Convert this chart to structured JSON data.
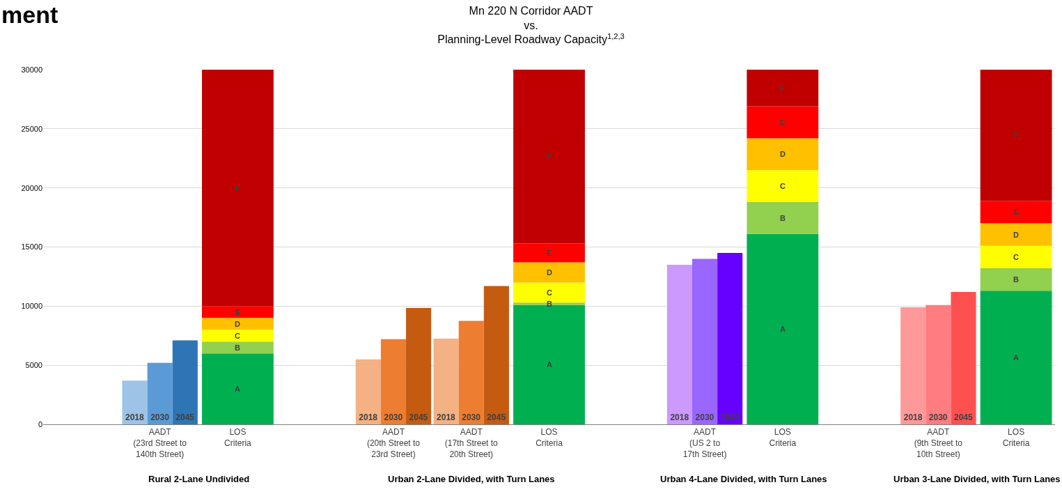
{
  "chart_data": {
    "type": "bar",
    "title": "Mn 220 N Corridor AADT\nvs.\nPlanning-Level Roadway Capacity$^{1,2,3}$",
    "categories": [
      null,
      "AADT\n(23rd Street to\n140th Street)",
      "LOS\nCriteria",
      null,
      "AADT\n(20th Street to\n23rd Street)",
      "AADT\n(17th Street to\n20th Street)",
      "LOS\nCriteria",
      null,
      "AADT\n(US 2 to\n17th Street)",
      "LOS\nCriteria",
      null,
      "AADT\n(9th Street to\n10th Street)",
      "LOS\nCriteria"
    ],
    "series": [
      {
        "name": "2018",
        "values": [
          null,
          3700,
          null,
          null,
          5500,
          7250,
          null,
          null,
          13500,
          null,
          null,
          9900,
          null
        ],
        "colors": [
          null,
          "#9dc3e6",
          null,
          null,
          "#f4b183",
          "#f4b183",
          null,
          null,
          "#cc99ff",
          null,
          null,
          "#ff9999",
          null
        ]
      },
      {
        "name": "2030",
        "values": [
          null,
          5200,
          null,
          null,
          7200,
          8750,
          null,
          null,
          14000,
          null,
          null,
          10100,
          null
        ],
        "colors": [
          null,
          "#5b9bd5",
          null,
          null,
          "#ed7d31",
          "#ed7d31",
          null,
          null,
          "#9966ff",
          null,
          null,
          "#ff7c80",
          null
        ]
      },
      {
        "name": "2045",
        "values": [
          null,
          7100,
          null,
          null,
          9850,
          11700,
          null,
          null,
          14500,
          null,
          null,
          11200,
          null
        ],
        "colors": [
          null,
          "#2e75b6",
          null,
          null,
          "#c55a11",
          "#c55a11",
          null,
          null,
          "#6600ff",
          null,
          null,
          "#ff5050",
          null
        ]
      },
      {
        "name": "A",
        "color": "#00b050",
        "values": [
          null,
          null,
          6000,
          null,
          null,
          null,
          10100,
          null,
          null,
          16100,
          null,
          null,
          11300
        ],
        "base": [
          null,
          null,
          0,
          null,
          null,
          null,
          0,
          null,
          null,
          0,
          null,
          null,
          0
        ]
      },
      {
        "name": "B",
        "color": "#92d050",
        "values": [
          null,
          null,
          1000,
          null,
          null,
          null,
          200,
          null,
          null,
          2700,
          null,
          null,
          1900
        ],
        "base": [
          null,
          null,
          6000,
          null,
          null,
          null,
          10100,
          null,
          null,
          16100,
          null,
          null,
          11300
        ]
      },
      {
        "name": "C",
        "color": "#ffff00",
        "values": [
          null,
          null,
          1000,
          null,
          null,
          null,
          1700,
          null,
          null,
          2700,
          null,
          null,
          1900
        ],
        "base": [
          null,
          null,
          7000,
          null,
          null,
          null,
          10300,
          null,
          null,
          18800,
          null,
          null,
          13200
        ]
      },
      {
        "name": "D",
        "color": "#ffc000",
        "values": [
          null,
          null,
          1000,
          null,
          null,
          null,
          1700,
          null,
          null,
          2700,
          null,
          null,
          1900
        ],
        "base": [
          null,
          null,
          8000,
          null,
          null,
          null,
          12000,
          null,
          null,
          21500,
          null,
          null,
          15100
        ]
      },
      {
        "name": "E",
        "color": "#ff0000",
        "values": [
          null,
          null,
          1000,
          null,
          null,
          null,
          1600,
          null,
          null,
          2700,
          null,
          null,
          1900
        ],
        "base": [
          null,
          null,
          9000,
          null,
          null,
          null,
          13700,
          null,
          null,
          24200,
          null,
          null,
          17000
        ]
      },
      {
        "name": "F",
        "color": "#c00000",
        "values": [
          null,
          null,
          20000,
          null,
          null,
          null,
          14700,
          null,
          null,
          3100,
          null,
          null,
          11100
        ],
        "base": [
          null,
          null,
          10000,
          null,
          null,
          null,
          15300,
          null,
          null,
          26900,
          null,
          null,
          18900
        ]
      }
    ],
    "ylim": [
      0,
      30000
    ],
    "yticks": [
      0,
      5000,
      10000,
      15000,
      20000,
      25000,
      30000
    ],
    "grid": "y",
    "legend": false,
    "annotations": [
      "Rural 2-Lane Undivided",
      "Urban 2-Lane Divided, with Turn Lanes",
      "Urban 4-Lane Divided, with Turn Lanes",
      "Urban 3-Lane Divided, with Turn Lanes",
      "ment"
    ]
  }
}
